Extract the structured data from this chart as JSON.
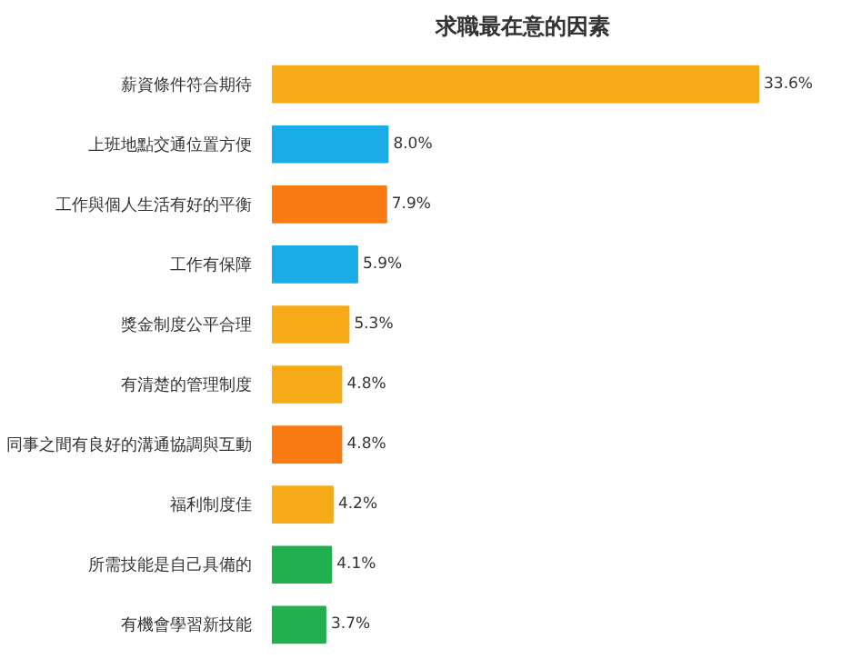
{
  "chart_data": {
    "type": "bar",
    "orientation": "horizontal",
    "title": "求職最在意的因素",
    "categories": [
      "薪資條件符合期待",
      "上班地點交通位置方便",
      "工作與個人生活有好的平衡",
      "工作有保障",
      "獎金制度公平合理",
      "有清楚的管理制度",
      "同事之間有良好的溝通協調與互動",
      "福利制度佳",
      "所需技能是自己具備的",
      "有機會學習新技能"
    ],
    "values": [
      33.6,
      8.0,
      7.9,
      5.9,
      5.3,
      4.8,
      4.8,
      4.2,
      4.1,
      3.7
    ],
    "value_labels": [
      "33.6%",
      "8.0%",
      "7.9%",
      "5.9%",
      "5.3%",
      "4.8%",
      "4.8%",
      "4.2%",
      "4.1%",
      "3.7%"
    ],
    "colors": [
      "#f7aa17",
      "#1aace6",
      "#fa7a12",
      "#1aace6",
      "#f7aa17",
      "#f7aa17",
      "#fa7a12",
      "#f7aa17",
      "#22b04e",
      "#22b04e"
    ],
    "grid": false
  }
}
